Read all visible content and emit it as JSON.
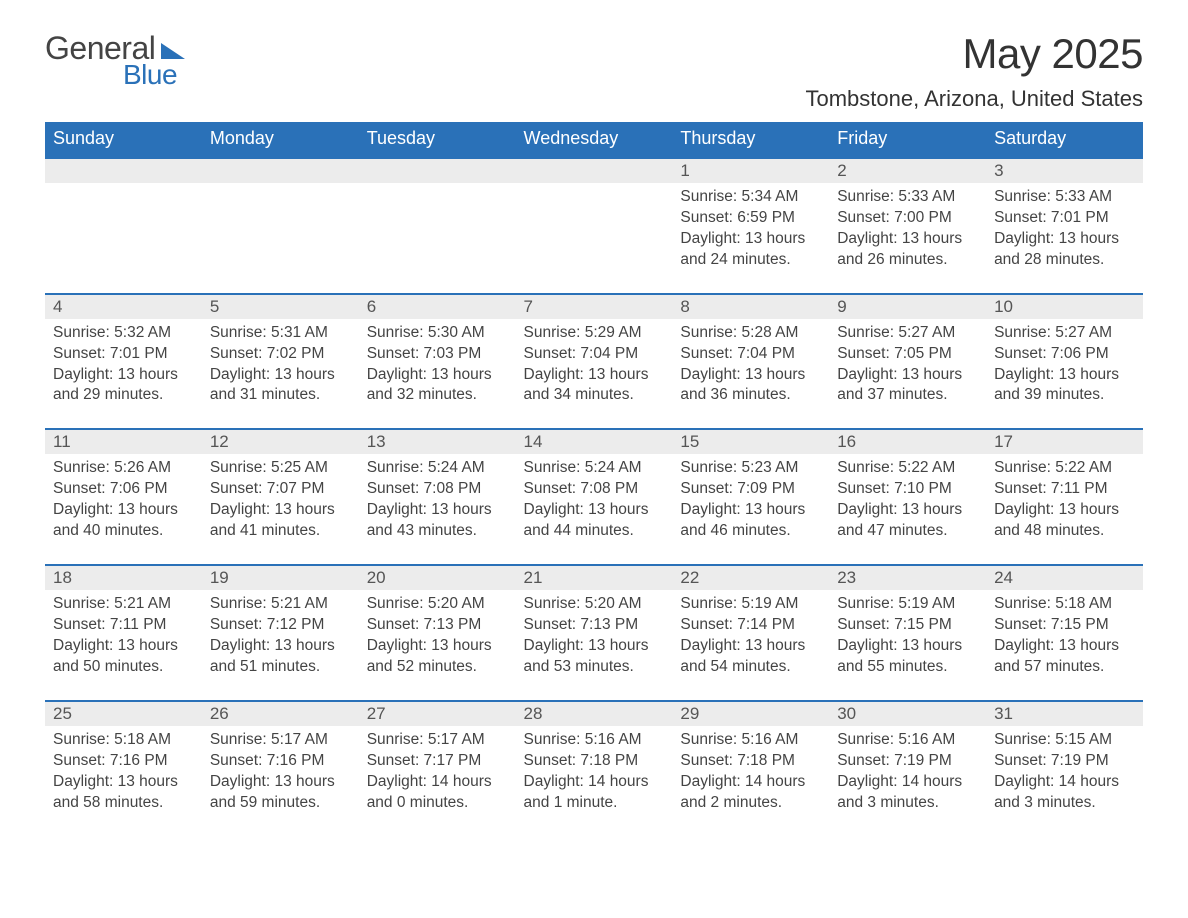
{
  "logo": {
    "word1": "General",
    "word2": "Blue"
  },
  "title": "May 2025",
  "subtitle": "Tombstone, Arizona, United States",
  "columns": [
    "Sunday",
    "Monday",
    "Tuesday",
    "Wednesday",
    "Thursday",
    "Friday",
    "Saturday"
  ],
  "colors": {
    "header_bg": "#2a71b8",
    "header_text": "#ffffff",
    "daynum_bg": "#ececec",
    "rule": "#2a71b8",
    "body_bg": "#ffffff",
    "text": "#333333",
    "logo_accent": "#2a71b8"
  },
  "fonts": {
    "title_size": 42,
    "subtitle_size": 22,
    "th_size": 18,
    "cell_size": 15.5
  },
  "weeks": [
    [
      null,
      null,
      null,
      null,
      {
        "n": "1",
        "sr": "Sunrise: 5:34 AM",
        "ss": "Sunset: 6:59 PM",
        "d1": "Daylight: 13 hours",
        "d2": "and 24 minutes."
      },
      {
        "n": "2",
        "sr": "Sunrise: 5:33 AM",
        "ss": "Sunset: 7:00 PM",
        "d1": "Daylight: 13 hours",
        "d2": "and 26 minutes."
      },
      {
        "n": "3",
        "sr": "Sunrise: 5:33 AM",
        "ss": "Sunset: 7:01 PM",
        "d1": "Daylight: 13 hours",
        "d2": "and 28 minutes."
      }
    ],
    [
      {
        "n": "4",
        "sr": "Sunrise: 5:32 AM",
        "ss": "Sunset: 7:01 PM",
        "d1": "Daylight: 13 hours",
        "d2": "and 29 minutes."
      },
      {
        "n": "5",
        "sr": "Sunrise: 5:31 AM",
        "ss": "Sunset: 7:02 PM",
        "d1": "Daylight: 13 hours",
        "d2": "and 31 minutes."
      },
      {
        "n": "6",
        "sr": "Sunrise: 5:30 AM",
        "ss": "Sunset: 7:03 PM",
        "d1": "Daylight: 13 hours",
        "d2": "and 32 minutes."
      },
      {
        "n": "7",
        "sr": "Sunrise: 5:29 AM",
        "ss": "Sunset: 7:04 PM",
        "d1": "Daylight: 13 hours",
        "d2": "and 34 minutes."
      },
      {
        "n": "8",
        "sr": "Sunrise: 5:28 AM",
        "ss": "Sunset: 7:04 PM",
        "d1": "Daylight: 13 hours",
        "d2": "and 36 minutes."
      },
      {
        "n": "9",
        "sr": "Sunrise: 5:27 AM",
        "ss": "Sunset: 7:05 PM",
        "d1": "Daylight: 13 hours",
        "d2": "and 37 minutes."
      },
      {
        "n": "10",
        "sr": "Sunrise: 5:27 AM",
        "ss": "Sunset: 7:06 PM",
        "d1": "Daylight: 13 hours",
        "d2": "and 39 minutes."
      }
    ],
    [
      {
        "n": "11",
        "sr": "Sunrise: 5:26 AM",
        "ss": "Sunset: 7:06 PM",
        "d1": "Daylight: 13 hours",
        "d2": "and 40 minutes."
      },
      {
        "n": "12",
        "sr": "Sunrise: 5:25 AM",
        "ss": "Sunset: 7:07 PM",
        "d1": "Daylight: 13 hours",
        "d2": "and 41 minutes."
      },
      {
        "n": "13",
        "sr": "Sunrise: 5:24 AM",
        "ss": "Sunset: 7:08 PM",
        "d1": "Daylight: 13 hours",
        "d2": "and 43 minutes."
      },
      {
        "n": "14",
        "sr": "Sunrise: 5:24 AM",
        "ss": "Sunset: 7:08 PM",
        "d1": "Daylight: 13 hours",
        "d2": "and 44 minutes."
      },
      {
        "n": "15",
        "sr": "Sunrise: 5:23 AM",
        "ss": "Sunset: 7:09 PM",
        "d1": "Daylight: 13 hours",
        "d2": "and 46 minutes."
      },
      {
        "n": "16",
        "sr": "Sunrise: 5:22 AM",
        "ss": "Sunset: 7:10 PM",
        "d1": "Daylight: 13 hours",
        "d2": "and 47 minutes."
      },
      {
        "n": "17",
        "sr": "Sunrise: 5:22 AM",
        "ss": "Sunset: 7:11 PM",
        "d1": "Daylight: 13 hours",
        "d2": "and 48 minutes."
      }
    ],
    [
      {
        "n": "18",
        "sr": "Sunrise: 5:21 AM",
        "ss": "Sunset: 7:11 PM",
        "d1": "Daylight: 13 hours",
        "d2": "and 50 minutes."
      },
      {
        "n": "19",
        "sr": "Sunrise: 5:21 AM",
        "ss": "Sunset: 7:12 PM",
        "d1": "Daylight: 13 hours",
        "d2": "and 51 minutes."
      },
      {
        "n": "20",
        "sr": "Sunrise: 5:20 AM",
        "ss": "Sunset: 7:13 PM",
        "d1": "Daylight: 13 hours",
        "d2": "and 52 minutes."
      },
      {
        "n": "21",
        "sr": "Sunrise: 5:20 AM",
        "ss": "Sunset: 7:13 PM",
        "d1": "Daylight: 13 hours",
        "d2": "and 53 minutes."
      },
      {
        "n": "22",
        "sr": "Sunrise: 5:19 AM",
        "ss": "Sunset: 7:14 PM",
        "d1": "Daylight: 13 hours",
        "d2": "and 54 minutes."
      },
      {
        "n": "23",
        "sr": "Sunrise: 5:19 AM",
        "ss": "Sunset: 7:15 PM",
        "d1": "Daylight: 13 hours",
        "d2": "and 55 minutes."
      },
      {
        "n": "24",
        "sr": "Sunrise: 5:18 AM",
        "ss": "Sunset: 7:15 PM",
        "d1": "Daylight: 13 hours",
        "d2": "and 57 minutes."
      }
    ],
    [
      {
        "n": "25",
        "sr": "Sunrise: 5:18 AM",
        "ss": "Sunset: 7:16 PM",
        "d1": "Daylight: 13 hours",
        "d2": "and 58 minutes."
      },
      {
        "n": "26",
        "sr": "Sunrise: 5:17 AM",
        "ss": "Sunset: 7:16 PM",
        "d1": "Daylight: 13 hours",
        "d2": "and 59 minutes."
      },
      {
        "n": "27",
        "sr": "Sunrise: 5:17 AM",
        "ss": "Sunset: 7:17 PM",
        "d1": "Daylight: 14 hours",
        "d2": "and 0 minutes."
      },
      {
        "n": "28",
        "sr": "Sunrise: 5:16 AM",
        "ss": "Sunset: 7:18 PM",
        "d1": "Daylight: 14 hours",
        "d2": "and 1 minute."
      },
      {
        "n": "29",
        "sr": "Sunrise: 5:16 AM",
        "ss": "Sunset: 7:18 PM",
        "d1": "Daylight: 14 hours",
        "d2": "and 2 minutes."
      },
      {
        "n": "30",
        "sr": "Sunrise: 5:16 AM",
        "ss": "Sunset: 7:19 PM",
        "d1": "Daylight: 14 hours",
        "d2": "and 3 minutes."
      },
      {
        "n": "31",
        "sr": "Sunrise: 5:15 AM",
        "ss": "Sunset: 7:19 PM",
        "d1": "Daylight: 14 hours",
        "d2": "and 3 minutes."
      }
    ]
  ]
}
